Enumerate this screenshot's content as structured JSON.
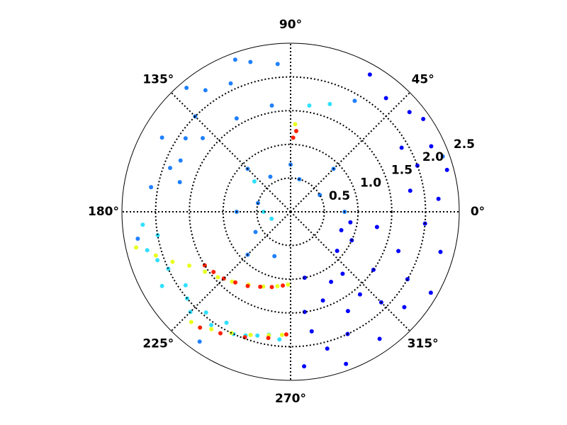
{
  "chart_data": {
    "type": "polar-scatter",
    "rlim": [
      0,
      2.5
    ],
    "rticks": [
      0.5,
      {
        "value": 1,
        "label": "1.0"
      },
      1.5,
      {
        "value": 2,
        "label": "2.0"
      },
      2.5
    ],
    "thetaticks": [
      {
        "value": 0,
        "label": "0°"
      },
      {
        "value": 45,
        "label": "45°"
      },
      {
        "value": 90,
        "label": "90°"
      },
      {
        "value": 135,
        "label": "135°"
      },
      {
        "value": 180,
        "label": "180°"
      },
      {
        "value": 225,
        "label": "225°"
      },
      {
        "value": 270,
        "label": "270°"
      },
      {
        "value": 315,
        "label": "315°"
      }
    ],
    "grid": true,
    "series": [
      {
        "color": "#0000ff",
        "theta": [
          275,
          280,
          285,
          290,
          295,
          300,
          305,
          310,
          315,
          320,
          325,
          330,
          335,
          340,
          345,
          350,
          355,
          5,
          10,
          15,
          20,
          25,
          30,
          35,
          40,
          50,
          60,
          282,
          300,
          320,
          340,
          290,
          310,
          330,
          350,
          278
        ],
        "r": [
          2.3,
          1.8,
          2.1,
          1.4,
          2.0,
          1.7,
          2.3,
          1.2,
          1.9,
          2.2,
          1.5,
          2.0,
          1.0,
          1.7,
          2.3,
          1.3,
          2.0,
          2.2,
          1.8,
          2.4,
          2.0,
          2.3,
          1.9,
          2.4,
          2.3,
          2.2,
          2.35,
          1.0,
          1.2,
          0.9,
          0.8,
          2.4,
          1.6,
          2.4,
          0.9,
          1.5
        ]
      },
      {
        "color": "#2080ff",
        "theta": [
          95,
          105,
          115,
          125,
          135,
          145,
          155,
          165,
          100,
          120,
          140,
          160,
          110,
          130,
          150,
          170,
          0,
          45,
          90,
          135,
          180,
          225,
          30,
          75,
          120,
          165,
          210,
          250,
          60,
          20,
          190,
          235
        ],
        "r": [
          2.2,
          2.3,
          2.1,
          2.2,
          2.0,
          1.9,
          1.8,
          1.7,
          1.6,
          1.6,
          1.7,
          1.9,
          2.4,
          2.4,
          2.2,
          2.1,
          0.8,
          0.9,
          0.7,
          0.9,
          0.8,
          0.9,
          0.5,
          0.5,
          0.6,
          0.5,
          0.6,
          0.7,
          1.9,
          2.4,
          2.3,
          2.35
        ]
      },
      {
        "color": "#30e0ff",
        "theta": [
          185,
          190,
          195,
          200,
          205,
          210,
          215,
          220,
          225,
          230,
          235,
          240,
          245,
          250,
          255,
          260,
          265,
          70,
          80,
          140,
          180,
          200
        ],
        "r": [
          2.2,
          2.0,
          2.2,
          2.1,
          2.0,
          2.2,
          1.9,
          2.0,
          2.1,
          1.95,
          2.05,
          1.9,
          2.0,
          1.95,
          1.9,
          1.85,
          1.9,
          1.7,
          1.6,
          0.7,
          0.4,
          0.3
        ]
      },
      {
        "color": "#e8ff20",
        "theta": [
          193,
          198,
          203,
          208,
          215,
          222,
          230,
          240,
          250,
          260,
          268,
          228,
          236,
          244,
          252,
          260,
          266,
          87
        ],
        "r": [
          2.35,
          2.1,
          1.9,
          1.7,
          1.55,
          1.45,
          1.35,
          1.25,
          1.18,
          1.12,
          1.08,
          2.2,
          2.1,
          2.0,
          1.92,
          1.86,
          1.83,
          1.3
        ]
      },
      {
        "color": "#ff2000",
        "theta": [
          212,
          218,
          225,
          232,
          240,
          248,
          256,
          264,
          232,
          240,
          250,
          260,
          268,
          88,
          86
        ],
        "r": [
          1.5,
          1.45,
          1.4,
          1.33,
          1.27,
          1.2,
          1.15,
          1.1,
          2.18,
          2.08,
          1.98,
          1.9,
          1.82,
          1.1,
          1.2
        ]
      }
    ]
  }
}
